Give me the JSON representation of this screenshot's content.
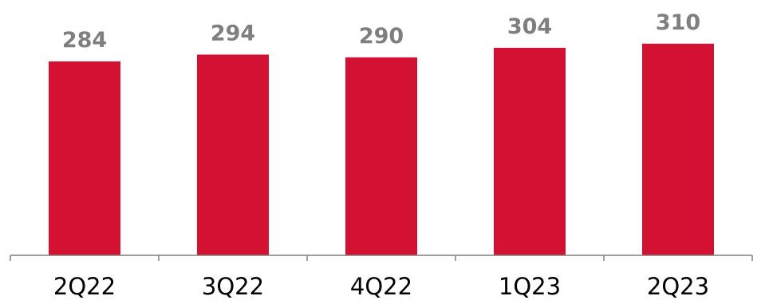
{
  "chart_data": {
    "type": "bar",
    "categories": [
      "2Q22",
      "3Q22",
      "4Q22",
      "1Q23",
      "2Q23"
    ],
    "values": [
      284,
      294,
      290,
      304,
      310
    ],
    "data_labels": [
      "284",
      "294",
      "290",
      "304",
      "310"
    ],
    "title": "",
    "xlabel": "",
    "ylabel": "",
    "ylim": [
      0,
      374
    ],
    "grid": false,
    "legend": "none",
    "colors": {
      "bar": "#d31132",
      "data_label": "#7f7f7f",
      "axis": "#808080",
      "tick_label": "#000000"
    }
  }
}
